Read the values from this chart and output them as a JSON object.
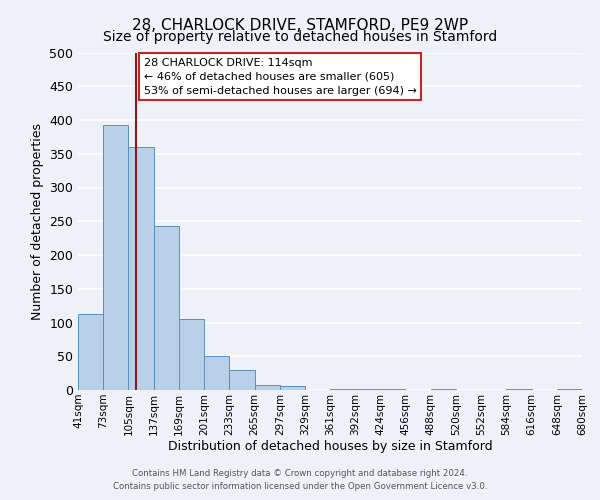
{
  "title": "28, CHARLOCK DRIVE, STAMFORD, PE9 2WP",
  "subtitle": "Size of property relative to detached houses in Stamford",
  "xlabel": "Distribution of detached houses by size in Stamford",
  "ylabel": "Number of detached properties",
  "bar_edges": [
    41,
    73,
    105,
    137,
    169,
    201,
    233,
    265,
    297,
    329,
    361,
    392,
    424,
    456,
    488,
    520,
    552,
    584,
    616,
    648,
    680
  ],
  "bar_heights": [
    112,
    393,
    360,
    243,
    105,
    50,
    30,
    8,
    6,
    0,
    2,
    1,
    1,
    0,
    1,
    0,
    0,
    1,
    0,
    2
  ],
  "bar_color": "#b8d0e8",
  "bar_edge_color": "#5a8fc0",
  "vline_x": 114,
  "vline_color": "#8b1a1a",
  "ylim": [
    0,
    500
  ],
  "annotation_title": "28 CHARLOCK DRIVE: 114sqm",
  "annotation_line1": "← 46% of detached houses are smaller (605)",
  "annotation_line2": "53% of semi-detached houses are larger (694) →",
  "footer_line1": "Contains HM Land Registry data © Crown copyright and database right 2024.",
  "footer_line2": "Contains public sector information licensed under the Open Government Licence v3.0.",
  "tick_labels": [
    "41sqm",
    "73sqm",
    "105sqm",
    "137sqm",
    "169sqm",
    "201sqm",
    "233sqm",
    "265sqm",
    "297sqm",
    "329sqm",
    "361sqm",
    "392sqm",
    "424sqm",
    "456sqm",
    "488sqm",
    "520sqm",
    "552sqm",
    "584sqm",
    "616sqm",
    "648sqm",
    "680sqm"
  ],
  "background_color": "#eef2f8",
  "grid_color": "#ffffff",
  "title_fontsize": 11,
  "subtitle_fontsize": 10,
  "axis_label_fontsize": 9,
  "tick_fontsize": 7.5,
  "ytick_labels": [
    0,
    50,
    100,
    150,
    200,
    250,
    300,
    350,
    400,
    450,
    500
  ]
}
